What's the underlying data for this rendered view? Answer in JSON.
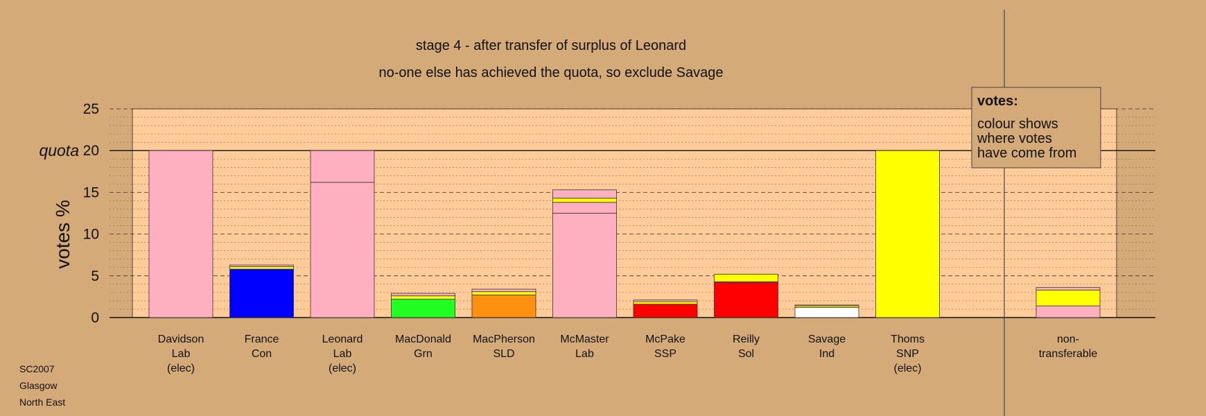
{
  "chart_data": {
    "type": "bar",
    "title": "stage 4 - after transfer of surplus of Leonard",
    "subtitle": "no-one else has achieved the quota, so exclude Savage",
    "ylabel": "votes %",
    "ylim": [
      0,
      25
    ],
    "yticks": [
      0,
      5,
      10,
      15,
      20,
      25
    ],
    "quota_value": 20,
    "quota_label": "quota",
    "grid": true,
    "legend_position": "top-right",
    "legend": {
      "title": "votes:",
      "lines": [
        "colour shows",
        "where votes",
        "have come from"
      ]
    },
    "colors": {
      "background": "#d4aa78",
      "plot_area": "#ffcc99",
      "Lab": "#ffb0c0",
      "Con": "#0000ff",
      "Grn": "#22ff22",
      "SLD": "#ff9010",
      "SSP": "#ff0000",
      "Sol": "#ff0000",
      "Ind": "#ffffff",
      "SNP": "#ffff00"
    },
    "categories": [
      {
        "name": "Davidson",
        "party": "Lab",
        "status": "(elec)",
        "segments": [
          {
            "from": "Lab",
            "value": 20.0
          }
        ]
      },
      {
        "name": "France",
        "party": "Con",
        "status": "",
        "segments": [
          {
            "from": "Con",
            "value": 5.8
          },
          {
            "from": "SNP",
            "value": 0.3
          },
          {
            "from": "Lab",
            "value": 0.2
          }
        ]
      },
      {
        "name": "Leonard",
        "party": "Lab",
        "status": "(elec)",
        "segments": [
          {
            "from": "Lab",
            "value": 16.2
          },
          {
            "from": "Lab",
            "value": 3.8
          }
        ]
      },
      {
        "name": "MacDonald",
        "party": "Grn",
        "status": "",
        "segments": [
          {
            "from": "Grn",
            "value": 2.2
          },
          {
            "from": "SNP",
            "value": 0.4
          },
          {
            "from": "Lab",
            "value": 0.3
          }
        ]
      },
      {
        "name": "MacPherson",
        "party": "SLD",
        "status": "",
        "segments": [
          {
            "from": "SLD",
            "value": 2.7
          },
          {
            "from": "SNP",
            "value": 0.4
          },
          {
            "from": "Lab",
            "value": 0.3
          }
        ]
      },
      {
        "name": "McMaster",
        "party": "Lab",
        "status": "",
        "segments": [
          {
            "from": "Lab",
            "value": 12.5
          },
          {
            "from": "Lab",
            "value": 1.3
          },
          {
            "from": "SNP",
            "value": 0.5
          },
          {
            "from": "Lab",
            "value": 1.0
          }
        ]
      },
      {
        "name": "McPake",
        "party": "SSP",
        "status": "",
        "segments": [
          {
            "from": "SSP",
            "value": 1.6
          },
          {
            "from": "SNP",
            "value": 0.3
          },
          {
            "from": "Lab",
            "value": 0.2
          }
        ]
      },
      {
        "name": "Reilly",
        "party": "Sol",
        "status": "",
        "segments": [
          {
            "from": "Sol",
            "value": 4.2
          },
          {
            "from": "Lab",
            "value": 0.1
          },
          {
            "from": "SNP",
            "value": 0.9
          }
        ]
      },
      {
        "name": "Savage",
        "party": "Ind",
        "status": "",
        "segments": [
          {
            "from": "Ind",
            "value": 1.2
          },
          {
            "from": "SNP",
            "value": 0.2
          },
          {
            "from": "Lab",
            "value": 0.1
          }
        ]
      },
      {
        "name": "Thoms",
        "party": "SNP",
        "status": "(elec)",
        "segments": [
          {
            "from": "SNP",
            "value": 20.0
          }
        ]
      }
    ],
    "nontransferable": {
      "label_lines": [
        "non-",
        "transferable"
      ],
      "segments": [
        {
          "from": "Lab",
          "value": 1.4
        },
        {
          "from": "SNP",
          "value": 1.9
        },
        {
          "from": "Lab",
          "value": 0.3
        }
      ]
    }
  },
  "footer": {
    "lines": [
      "SC2007",
      "Glasgow",
      "North East"
    ]
  }
}
